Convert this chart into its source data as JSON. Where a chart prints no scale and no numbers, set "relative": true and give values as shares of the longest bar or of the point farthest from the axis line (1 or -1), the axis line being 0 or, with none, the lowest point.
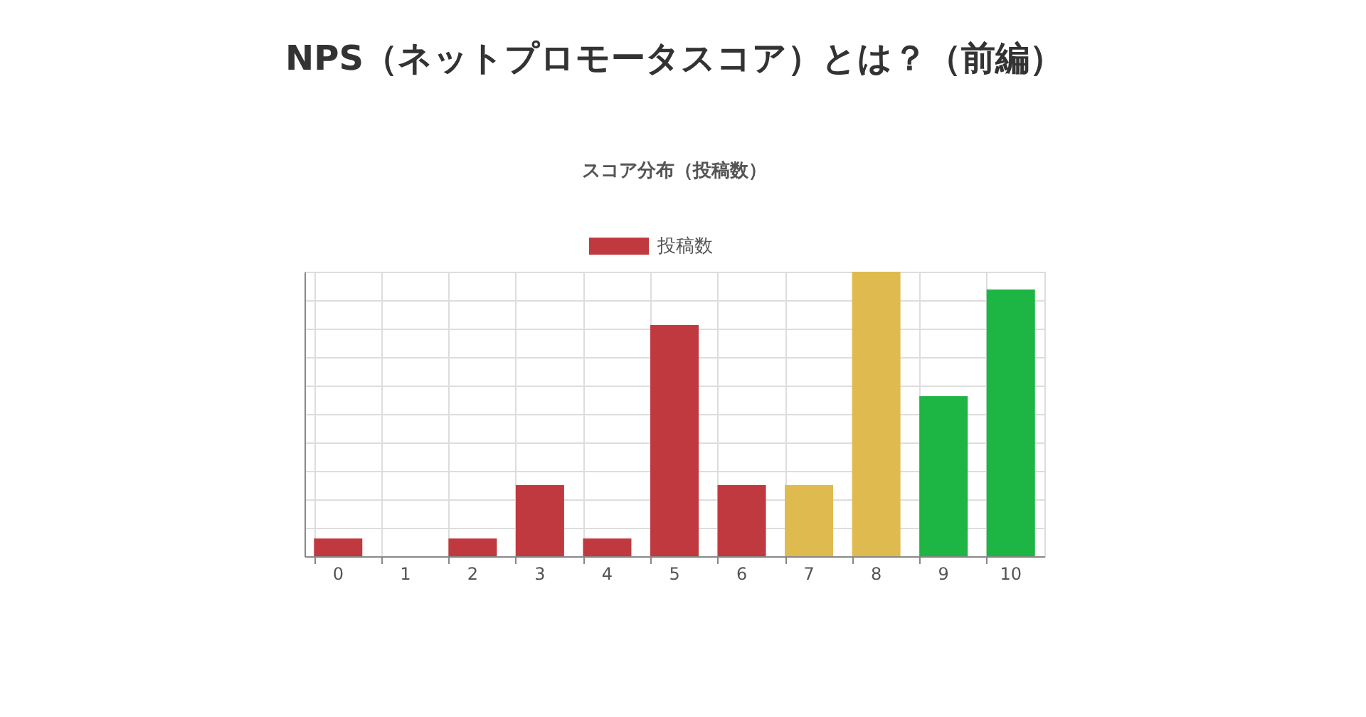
{
  "chart_data": {
    "type": "bar",
    "title": "NPS（ネットプロモータスコア）とは？（前編）",
    "subtitle": "スコア分布（投稿数）",
    "categories": [
      "0",
      "1",
      "2",
      "3",
      "4",
      "5",
      "6",
      "7",
      "8",
      "9",
      "10"
    ],
    "relative": true,
    "grid": true,
    "legend": "top",
    "series": [
      {
        "name": "投稿数",
        "color": "#c0393f",
        "values": [
          0.0625,
          0,
          0.0625,
          0.25,
          0.0625,
          0.8125,
          0.25,
          0.25,
          1,
          0.5625,
          0.9375
        ],
        "colors": [
          "#c0393f",
          "#c0393f",
          "#c0393f",
          "#c0393f",
          "#c0393f",
          "#c0393f",
          "#c0393f",
          "#dfbb4f",
          "#dfbb4f",
          "#1db544",
          "#1db544"
        ]
      }
    ]
  }
}
